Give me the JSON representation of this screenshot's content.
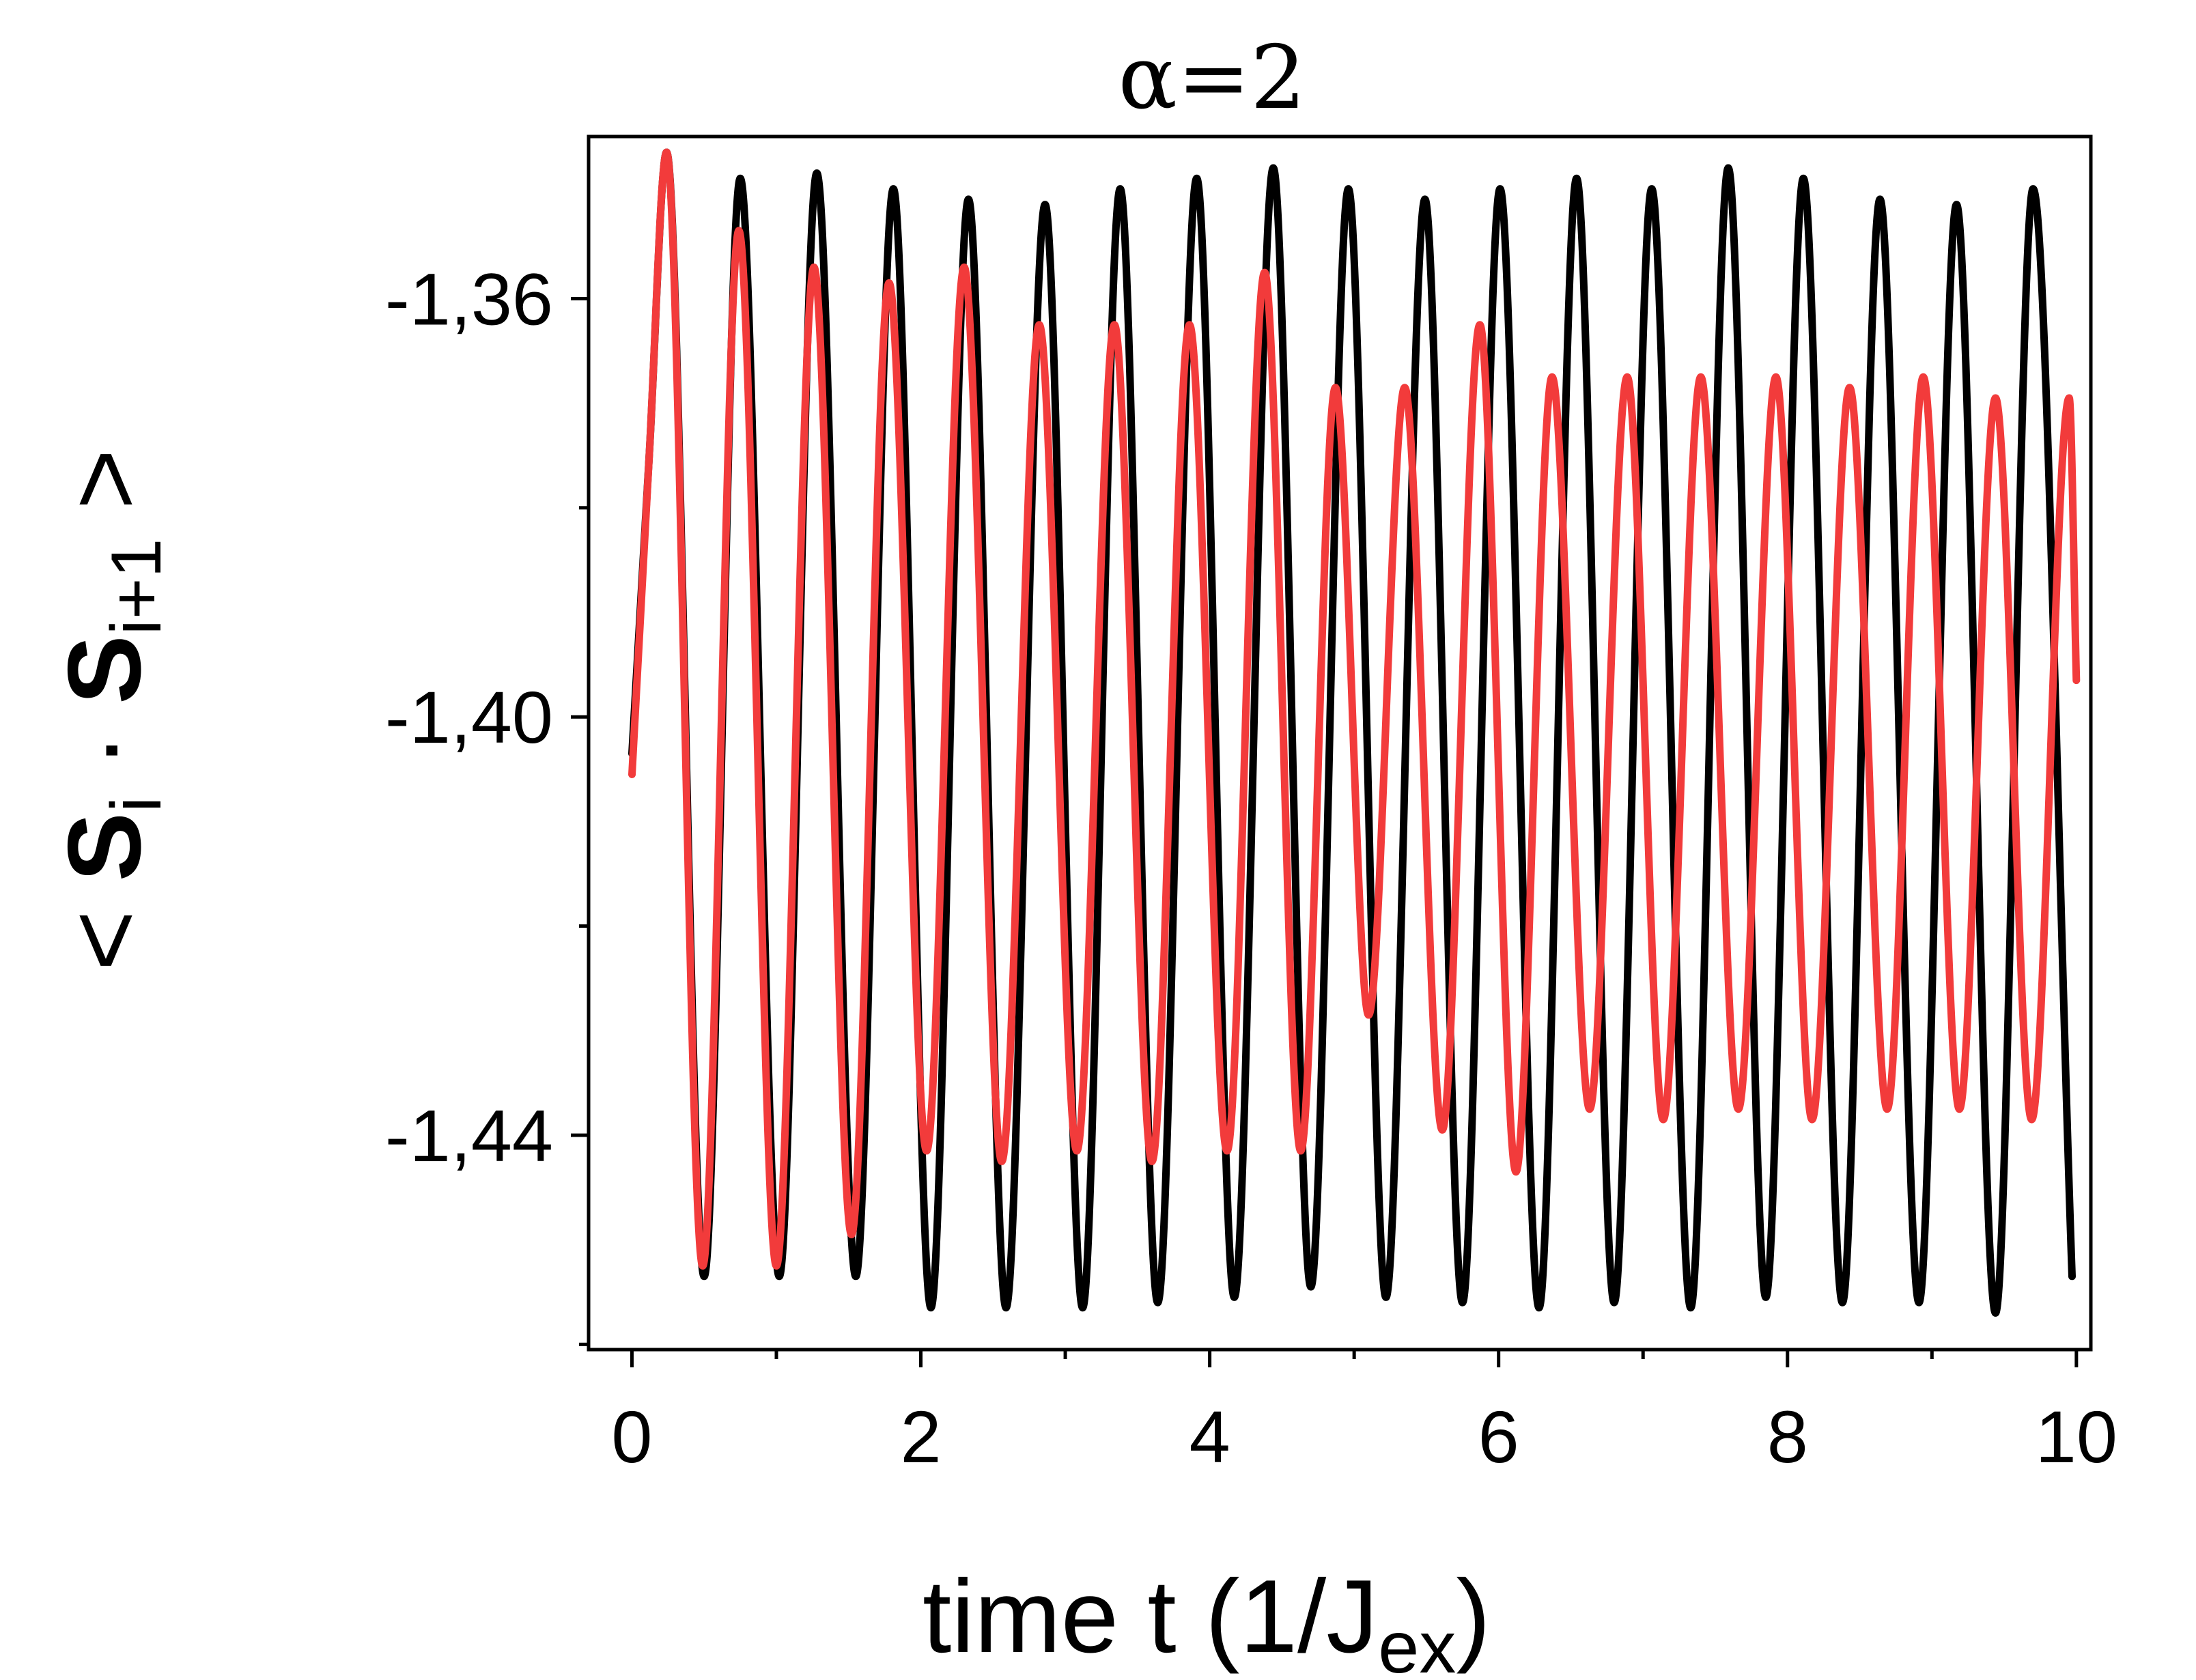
{
  "chart_data": {
    "type": "line",
    "title": "α=2",
    "xlabel": {
      "main": "time t (1/J",
      "sub": "ex",
      "close": ")"
    },
    "ylabel": {
      "open": "< ",
      "s1": "S",
      "sub1": "i",
      "dot": " · ",
      "s2": "S",
      "sub2": "i+1",
      "close": " >"
    },
    "xlim": [
      -0.3,
      10.1
    ],
    "ylim": [
      -1.4605,
      -1.3445
    ],
    "x_ticks": [
      0,
      2,
      4,
      6,
      8,
      10
    ],
    "x_tick_labels": [
      "0",
      "2",
      "4",
      "6",
      "8",
      "10"
    ],
    "y_ticks": [
      -1.36,
      -1.4,
      -1.44
    ],
    "y_tick_labels": [
      "-1,36",
      "-1,40",
      "-1,44"
    ],
    "grid": false,
    "series": [
      {
        "color": "#000000",
        "points": [
          [
            0.0,
            -1.4035
          ],
          [
            0.12,
            -1.375
          ],
          [
            0.24,
            -1.346
          ],
          [
            0.5,
            -1.4535
          ],
          [
            0.75,
            -1.3485
          ],
          [
            1.02,
            -1.4535
          ],
          [
            1.28,
            -1.348
          ],
          [
            1.55,
            -1.4535
          ],
          [
            1.81,
            -1.3495
          ],
          [
            2.07,
            -1.4565
          ],
          [
            2.33,
            -1.3505
          ],
          [
            2.59,
            -1.4565
          ],
          [
            2.86,
            -1.351
          ],
          [
            3.12,
            -1.4565
          ],
          [
            3.38,
            -1.3495
          ],
          [
            3.64,
            -1.456
          ],
          [
            3.91,
            -1.3485
          ],
          [
            4.17,
            -1.4555
          ],
          [
            4.44,
            -1.3475
          ],
          [
            4.7,
            -1.4545
          ],
          [
            4.96,
            -1.3495
          ],
          [
            5.22,
            -1.4555
          ],
          [
            5.49,
            -1.3505
          ],
          [
            5.75,
            -1.456
          ],
          [
            6.01,
            -1.3495
          ],
          [
            6.28,
            -1.4565
          ],
          [
            6.54,
            -1.3485
          ],
          [
            6.8,
            -1.456
          ],
          [
            7.06,
            -1.3495
          ],
          [
            7.33,
            -1.4565
          ],
          [
            7.59,
            -1.3475
          ],
          [
            7.85,
            -1.4555
          ],
          [
            8.11,
            -1.3485
          ],
          [
            8.38,
            -1.456
          ],
          [
            8.64,
            -1.3505
          ],
          [
            8.91,
            -1.456
          ],
          [
            9.17,
            -1.351
          ],
          [
            9.44,
            -1.457
          ],
          [
            9.7,
            -1.3495
          ],
          [
            9.97,
            -1.4535
          ]
        ]
      },
      {
        "color": "#f23b3b",
        "points": [
          [
            0.0,
            -1.4055
          ],
          [
            0.12,
            -1.375
          ],
          [
            0.24,
            -1.346
          ],
          [
            0.49,
            -1.4525
          ],
          [
            0.74,
            -1.3535
          ],
          [
            1.0,
            -1.4525
          ],
          [
            1.26,
            -1.357
          ],
          [
            1.52,
            -1.4495
          ],
          [
            1.78,
            -1.3585
          ],
          [
            2.04,
            -1.4415
          ],
          [
            2.3,
            -1.357
          ],
          [
            2.56,
            -1.4425
          ],
          [
            2.82,
            -1.3625
          ],
          [
            3.08,
            -1.4415
          ],
          [
            3.34,
            -1.3625
          ],
          [
            3.6,
            -1.4425
          ],
          [
            3.86,
            -1.3625
          ],
          [
            4.12,
            -1.4415
          ],
          [
            4.38,
            -1.3575
          ],
          [
            4.63,
            -1.4415
          ],
          [
            4.87,
            -1.3685
          ],
          [
            5.1,
            -1.4285
          ],
          [
            5.35,
            -1.3685
          ],
          [
            5.61,
            -1.4395
          ],
          [
            5.87,
            -1.3625
          ],
          [
            6.12,
            -1.4435
          ],
          [
            6.37,
            -1.3675
          ],
          [
            6.63,
            -1.4375
          ],
          [
            6.89,
            -1.3675
          ],
          [
            7.14,
            -1.4385
          ],
          [
            7.4,
            -1.3675
          ],
          [
            7.66,
            -1.4375
          ],
          [
            7.92,
            -1.3675
          ],
          [
            8.17,
            -1.4385
          ],
          [
            8.43,
            -1.3685
          ],
          [
            8.69,
            -1.4375
          ],
          [
            8.94,
            -1.3675
          ],
          [
            9.19,
            -1.4375
          ],
          [
            9.44,
            -1.3695
          ],
          [
            9.69,
            -1.4385
          ],
          [
            9.95,
            -1.3695
          ],
          [
            10.0,
            -1.3965
          ]
        ]
      }
    ]
  }
}
